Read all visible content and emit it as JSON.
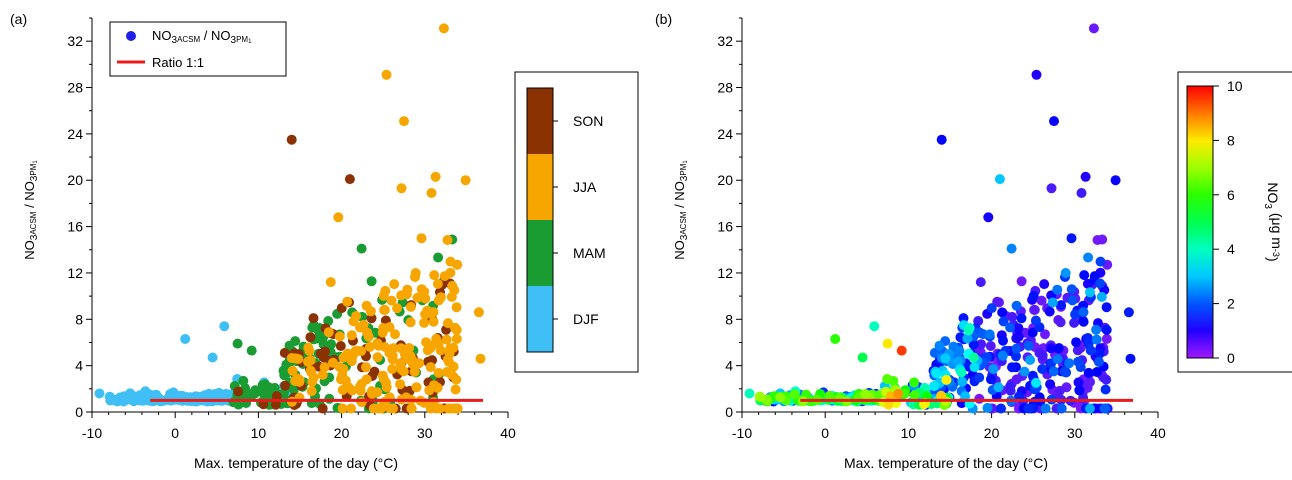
{
  "colors": {
    "axis": "#000000",
    "ratio_line": "#e81b1b",
    "legend_marker": "#1f1fe6",
    "season_SON": "#8b3203",
    "season_JJA": "#f7a600",
    "season_MAM": "#1b9c33",
    "season_DJF": "#3fbff5"
  },
  "chart_data": [
    {
      "type": "scatter",
      "panel_label": "(a)",
      "xlabel": "Max. temperature of the day (°C)",
      "ylabel": {
        "base": "NO",
        "sub1": "3",
        "sub2": "ACSM",
        "sep": " / ",
        "base2": "NO",
        "sub3": "3",
        "sub4": "PM",
        "sub5": "1"
      },
      "xlim": [
        -10,
        40
      ],
      "ylim": [
        0,
        34
      ],
      "xticks": [
        -10,
        0,
        10,
        20,
        30,
        40
      ],
      "yticks": [
        0,
        4,
        8,
        12,
        16,
        20,
        24,
        28,
        32
      ],
      "grid": false,
      "legend": {
        "placement": "top-left",
        "entries": [
          {
            "kind": "marker",
            "base": "NO",
            "sub1": "3",
            "sub2": "ACSM",
            "sep": " / ",
            "base2": "NO",
            "sub3": "3",
            "sub4": "PM",
            "sub5": "1"
          },
          {
            "kind": "line",
            "label": "Ratio 1:1"
          }
        ]
      },
      "ratio_line": {
        "x": [
          -3,
          37
        ],
        "y": [
          1,
          1
        ]
      },
      "colorbar": {
        "kind": "categorical",
        "categories": [
          {
            "label": "SON",
            "color": "#8b3203"
          },
          {
            "label": "JJA",
            "color": "#f7a600"
          },
          {
            "label": "MAM",
            "color": "#1b9c33"
          },
          {
            "label": "DJF",
            "color": "#3fbff5"
          }
        ]
      },
      "color_by": "season"
    },
    {
      "type": "scatter",
      "panel_label": "(b)",
      "xlabel": "Max. temperature of the day (°C)",
      "ylabel": {
        "base": "NO",
        "sub1": "3",
        "sub2": "ACSM",
        "sep": " / ",
        "base2": "NO",
        "sub3": "3",
        "sub4": "PM",
        "sub5": "1"
      },
      "xlim": [
        -10,
        40
      ],
      "ylim": [
        0,
        34
      ],
      "xticks": [
        -10,
        0,
        10,
        20,
        30,
        40
      ],
      "yticks": [
        0,
        4,
        8,
        12,
        16,
        20,
        24,
        28,
        32
      ],
      "grid": false,
      "ratio_line": {
        "x": [
          -3,
          37
        ],
        "y": [
          1,
          1
        ]
      },
      "colorbar": {
        "kind": "continuous",
        "colormap": "rainbow (purple to red)",
        "range": [
          0,
          10
        ],
        "ticks": [
          0,
          2,
          4,
          6,
          8,
          10
        ],
        "label": {
          "base": "NO",
          "sub": "3",
          "rest": " (μg m",
          "sup": "-3",
          "close": ")"
        }
      },
      "color_by": "NO3 concentration"
    }
  ],
  "points": {
    "x_unit": "°C",
    "highlighted": [
      {
        "x": 32.3,
        "y": 33.1,
        "season": "JJA",
        "no3": 0.5
      },
      {
        "x": 25.4,
        "y": 29.1,
        "season": "JJA",
        "no3": 1.0
      },
      {
        "x": 27.5,
        "y": 25.1,
        "season": "JJA",
        "no3": 1.2
      },
      {
        "x": 14.0,
        "y": 23.5,
        "season": "SON",
        "no3": 1.3
      },
      {
        "x": 21.0,
        "y": 20.1,
        "season": "SON",
        "no3": 3.0
      },
      {
        "x": 31.3,
        "y": 20.3,
        "season": "JJA",
        "no3": 1.0
      },
      {
        "x": 34.9,
        "y": 20.0,
        "season": "JJA",
        "no3": 1.2
      },
      {
        "x": 27.2,
        "y": 19.3,
        "season": "JJA",
        "no3": 0.8
      },
      {
        "x": 30.8,
        "y": 18.9,
        "season": "JJA",
        "no3": 0.9
      },
      {
        "x": 19.6,
        "y": 16.8,
        "season": "JJA",
        "no3": 1.1
      },
      {
        "x": 22.4,
        "y": 14.1,
        "season": "MAM",
        "no3": 2.4
      },
      {
        "x": 36.5,
        "y": 8.6,
        "season": "JJA",
        "no3": 1.5
      },
      {
        "x": 36.7,
        "y": 4.6,
        "season": "JJA",
        "no3": 1.4
      },
      {
        "x": 1.2,
        "y": 6.3,
        "season": "DJF",
        "no3": 6.0
      },
      {
        "x": 5.9,
        "y": 7.4,
        "season": "DJF",
        "no3": 4.0
      },
      {
        "x": 7.5,
        "y": 5.9,
        "season": "MAM",
        "no3": 8.0
      },
      {
        "x": 9.2,
        "y": 5.3,
        "season": "MAM",
        "no3": 9.5
      },
      {
        "x": 4.5,
        "y": 4.7,
        "season": "DJF",
        "no3": 5.0
      },
      {
        "x": -9.1,
        "y": 1.6,
        "season": "DJF",
        "no3": 4.0
      }
    ]
  }
}
